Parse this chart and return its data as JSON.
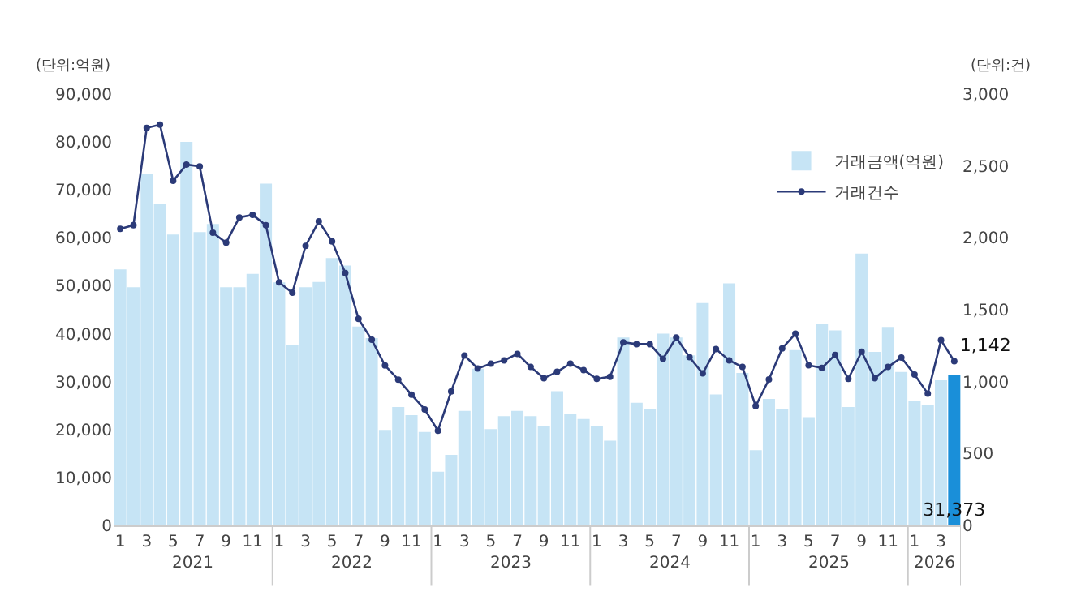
{
  "chart_data": {
    "type": "bar",
    "categories": [
      "1",
      null,
      "3",
      null,
      "5",
      null,
      "7",
      null,
      "9",
      null,
      "11",
      null,
      "1",
      null,
      "3",
      null,
      "5",
      null,
      "7",
      null,
      "9",
      null,
      "11",
      null,
      "1",
      null,
      "3",
      null,
      "5",
      null,
      "7",
      null,
      "9",
      null,
      "11",
      null,
      "1",
      null,
      "3",
      null,
      "5",
      null,
      "7",
      null,
      "9",
      null,
      "11",
      null,
      "1",
      null,
      "3",
      null,
      "5",
      null,
      "7",
      null,
      "9",
      null,
      "11",
      null,
      "1",
      null,
      "3",
      null
    ],
    "series": [
      {
        "name": "거래금액(억원)",
        "colors": [
          "#c6e4f5",
          "#c6e4f5",
          "#c6e4f5",
          "#c6e4f5",
          "#c6e4f5",
          "#c6e4f5",
          "#c6e4f5",
          "#c6e4f5",
          "#c6e4f5",
          "#c6e4f5",
          "#c6e4f5",
          "#c6e4f5",
          "#c6e4f5",
          "#c6e4f5",
          "#c6e4f5",
          "#c6e4f5",
          "#c6e4f5",
          "#c6e4f5",
          "#c6e4f5",
          "#c6e4f5",
          "#c6e4f5",
          "#c6e4f5",
          "#c6e4f5",
          "#c6e4f5",
          "#c6e4f5",
          "#c6e4f5",
          "#c6e4f5",
          "#c6e4f5",
          "#c6e4f5",
          "#c6e4f5",
          "#c6e4f5",
          "#c6e4f5",
          "#c6e4f5",
          "#c6e4f5",
          "#c6e4f5",
          "#c6e4f5",
          "#c6e4f5",
          "#c6e4f5",
          "#c6e4f5",
          "#c6e4f5",
          "#c6e4f5",
          "#c6e4f5",
          "#c6e4f5",
          "#c6e4f5",
          "#c6e4f5",
          "#c6e4f5",
          "#c6e4f5",
          "#c6e4f5",
          "#c6e4f5",
          "#c6e4f5",
          "#c6e4f5",
          "#c6e4f5",
          "#c6e4f5",
          "#c6e4f5",
          "#c6e4f5",
          "#c6e4f5",
          "#c6e4f5",
          "#c6e4f5",
          "#c6e4f5",
          "#c6e4f5",
          "#c6e4f5",
          "#c6e4f5",
          "#c6e4f5",
          "#1a8fd9"
        ],
        "values": [
          53400,
          49700,
          73300,
          67000,
          60700,
          80000,
          61200,
          62900,
          49700,
          49700,
          52500,
          71300,
          50700,
          37600,
          49700,
          50800,
          55800,
          54200,
          41500,
          39100,
          19900,
          24700,
          23000,
          19500,
          11200,
          14700,
          23900,
          32700,
          20100,
          22800,
          23900,
          22800,
          20800,
          28000,
          23200,
          22200,
          20800,
          17700,
          39200,
          25600,
          24200,
          40000,
          39200,
          35500,
          46400,
          27300,
          50500,
          31800,
          15700,
          26400,
          24300,
          36600,
          22600,
          42000,
          40700,
          24700,
          56700,
          36200,
          41400,
          32000,
          26000,
          25200,
          30300,
          31373
        ],
        "value_labels": [
          null,
          null,
          null,
          null,
          null,
          null,
          null,
          null,
          null,
          null,
          null,
          null,
          null,
          null,
          null,
          null,
          null,
          null,
          null,
          null,
          null,
          null,
          null,
          null,
          null,
          null,
          null,
          null,
          null,
          null,
          null,
          null,
          null,
          null,
          null,
          null,
          null,
          null,
          null,
          null,
          null,
          null,
          null,
          null,
          null,
          null,
          null,
          null,
          null,
          null,
          null,
          null,
          null,
          null,
          null,
          null,
          null,
          null,
          null,
          null,
          null,
          null,
          null,
          "31,373"
        ]
      },
      {
        "name": "거래건수",
        "type": "line",
        "axis": "y2",
        "color": "#2b3a78",
        "marker": "circle",
        "values": [
          2062,
          2088,
          2764,
          2787,
          2396,
          2510,
          2497,
          2035,
          1967,
          2142,
          2160,
          2088,
          1690,
          1618,
          1944,
          2115,
          1975,
          1755,
          1436,
          1291,
          1112,
          1014,
          909,
          807,
          659,
          932,
          1182,
          1091,
          1125,
          1148,
          1193,
          1102,
          1023,
          1068,
          1125,
          1080,
          1019,
          1034,
          1273,
          1261,
          1261,
          1159,
          1307,
          1170,
          1057,
          1227,
          1148,
          1102,
          830,
          1015,
          1231,
          1333,
          1114,
          1095,
          1186,
          1019,
          1208,
          1023,
          1102,
          1167,
          1049,
          917,
          1288,
          1142
        ],
        "value_labels": [
          null,
          null,
          null,
          null,
          null,
          null,
          null,
          null,
          null,
          null,
          null,
          null,
          null,
          null,
          null,
          null,
          null,
          null,
          null,
          null,
          null,
          null,
          null,
          null,
          null,
          null,
          null,
          null,
          null,
          null,
          null,
          null,
          null,
          null,
          null,
          null,
          null,
          null,
          null,
          null,
          null,
          null,
          null,
          null,
          null,
          null,
          null,
          null,
          null,
          null,
          null,
          null,
          null,
          null,
          null,
          null,
          null,
          null,
          null,
          null,
          null,
          null,
          null,
          "1,142"
        ]
      }
    ],
    "ylabel": "(단위:억원)",
    "y2label": "(단위:건)",
    "ylim": [
      0,
      90000
    ],
    "yticks": [
      {
        "value": 0,
        "label": "0"
      },
      {
        "value": 10000,
        "label": "10,000"
      },
      {
        "value": 20000,
        "label": "20,000"
      },
      {
        "value": 30000,
        "label": "30,000"
      },
      {
        "value": 40000,
        "label": "40,000"
      },
      {
        "value": 50000,
        "label": "50,000"
      },
      {
        "value": 60000,
        "label": "60,000"
      },
      {
        "value": 70000,
        "label": "70,000"
      },
      {
        "value": 80000,
        "label": "80,000"
      },
      {
        "value": 90000,
        "label": "90,000"
      }
    ],
    "y2lim": [
      0,
      3000
    ],
    "y2ticks": [
      {
        "value": 0,
        "label": "0"
      },
      {
        "value": 500,
        "label": "500"
      },
      {
        "value": 1000,
        "label": "1,000"
      },
      {
        "value": 1500,
        "label": "1,500"
      },
      {
        "value": 2000,
        "label": "2,000"
      },
      {
        "value": 2500,
        "label": "2,500"
      },
      {
        "value": 3000,
        "label": "3,000"
      }
    ],
    "annotations": [
      "2021",
      "2022",
      "2023",
      "2024",
      "2025",
      "2026"
    ],
    "legend": "top right"
  }
}
